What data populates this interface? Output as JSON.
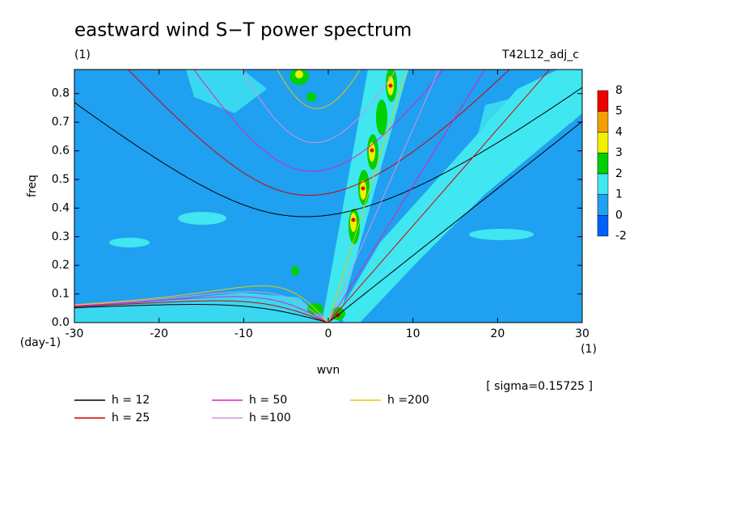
{
  "chart_data": {
    "type": "spectrum",
    "title": "eastward wind S−T power spectrum",
    "subtitle": "(1)",
    "run_label": "T42L12_adj_c",
    "x_label": "wvn",
    "x_unit": "(1)",
    "y_label": "freq",
    "y_unit": "(day-1)",
    "annotation": "[ sigma=0.15725 ]",
    "xlim": [
      -30,
      30
    ],
    "ylim": [
      0,
      0.884
    ],
    "xticks": [
      -30,
      -20,
      -10,
      0,
      10,
      20,
      30
    ],
    "yticks": [
      {
        "value": 0,
        "label": "0.0"
      },
      0.1,
      0.2,
      0.3,
      0.4,
      0.5,
      0.6,
      0.7,
      0.8
    ],
    "series": [
      {
        "name": "h = 12",
        "h": 12,
        "color": "#000000"
      },
      {
        "name": "h = 25",
        "h": 25,
        "color": "#d00000"
      },
      {
        "name": "h = 50",
        "h": 50,
        "color": "#e020c0"
      },
      {
        "name": "h =100",
        "h": 100,
        "color": "#d890e0"
      },
      {
        "name": "h =200",
        "h": 200,
        "color": "#e8c800"
      }
    ],
    "colorbar": {
      "levels": [
        -2,
        0,
        1,
        2,
        3,
        4,
        5,
        8
      ],
      "colors": [
        "#0060ff",
        "#20a0f0",
        "#40e6f0",
        "#00d000",
        "#f0f000",
        "#f0a000",
        "#f00000"
      ]
    }
  }
}
